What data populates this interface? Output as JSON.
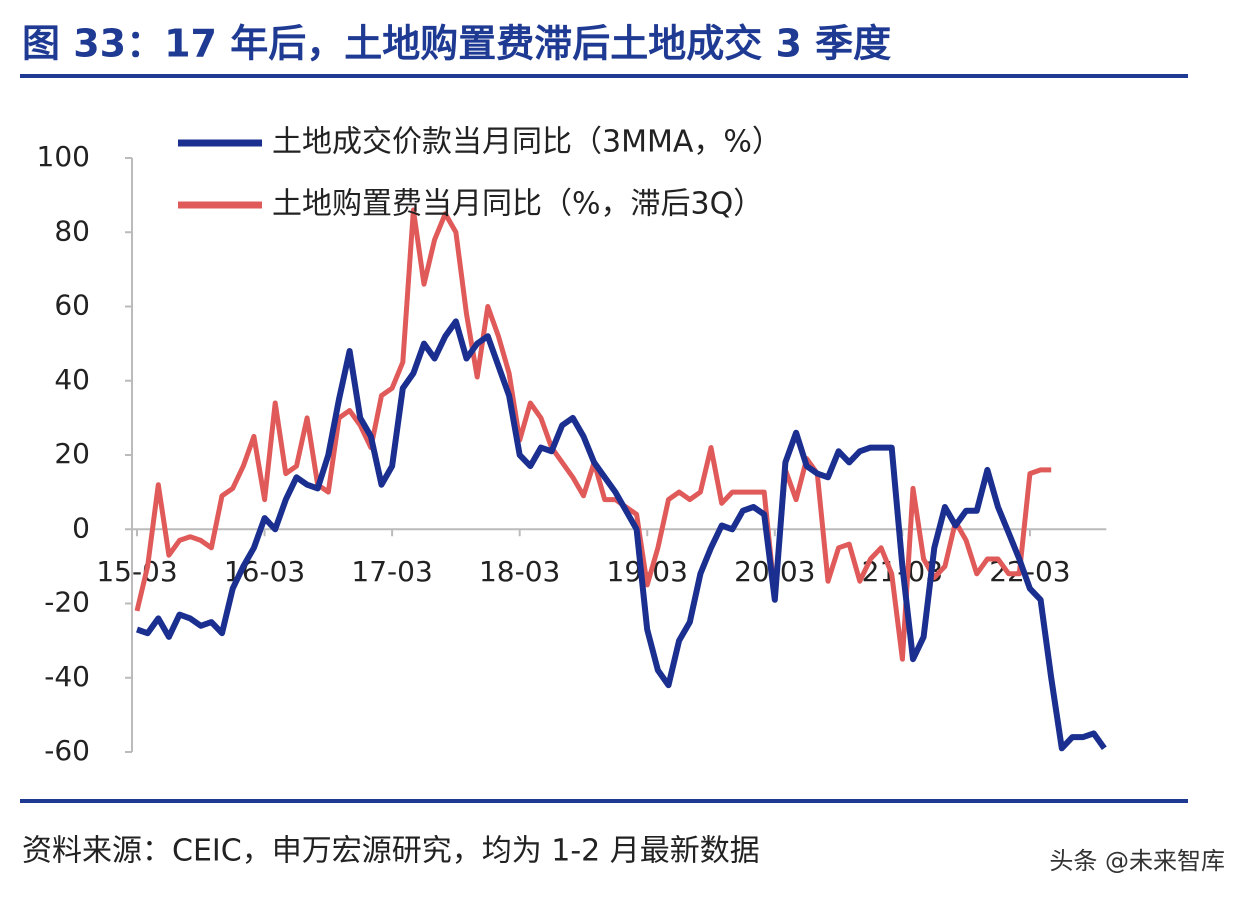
{
  "chart_data": {
    "type": "line",
    "title": "图 33：17 年后，土地购置费滞后土地成交 3 季度",
    "source": "资料来源：CEIC，申万宏源研究，均为 1-2 月最新数据",
    "watermark": "头条 @未来智库",
    "categories": [
      "15-03",
      null,
      null,
      null,
      null,
      null,
      null,
      null,
      null,
      null,
      null,
      null,
      "16-03",
      null,
      null,
      null,
      null,
      null,
      null,
      null,
      null,
      null,
      null,
      null,
      "17-03",
      null,
      null,
      null,
      null,
      null,
      null,
      null,
      null,
      null,
      null,
      null,
      "18-03",
      null,
      null,
      null,
      null,
      null,
      null,
      null,
      null,
      null,
      null,
      null,
      "19-03",
      null,
      null,
      null,
      null,
      null,
      null,
      null,
      null,
      null,
      null,
      null,
      "20-03",
      null,
      null,
      null,
      null,
      null,
      null,
      null,
      null,
      null,
      null,
      null,
      "21-03",
      null,
      null,
      null,
      null,
      null,
      null,
      null,
      null,
      null,
      null,
      null,
      "22-03",
      null,
      null,
      null,
      null,
      null,
      null,
      null
    ],
    "series": [
      {
        "name": "土地成交价款当月同比（3MMA，%）",
        "color": "#1a2f8f",
        "values": [
          -27,
          -28,
          -24,
          -29,
          -23,
          -24,
          -26,
          -25,
          -28,
          -16,
          -10,
          -5,
          3,
          0,
          8,
          14,
          12,
          11,
          20,
          35,
          48,
          30,
          25,
          12,
          17,
          38,
          42,
          50,
          46,
          52,
          56,
          46,
          50,
          52,
          44,
          36,
          20,
          17,
          22,
          21,
          28,
          30,
          25,
          18,
          14,
          10,
          5,
          0,
          -27,
          -38,
          -42,
          -30,
          -25,
          -12,
          -5,
          1,
          0,
          5,
          6,
          4,
          -19,
          18,
          26,
          17,
          15,
          14,
          21,
          18,
          21,
          22,
          22,
          22,
          -10,
          -35,
          -29,
          -5,
          6,
          1,
          5,
          5,
          16,
          6,
          -1,
          -8,
          -16,
          -19,
          -40,
          -59,
          -56,
          -56,
          -55,
          -59
        ]
      },
      {
        "name": "土地购置费当月同比（%，滞后3Q）",
        "color": "#e05a5a",
        "values": [
          -22,
          -10,
          12,
          -7,
          -3,
          -2,
          -3,
          -5,
          9,
          11,
          17,
          25,
          8,
          34,
          15,
          17,
          30,
          12,
          10,
          30,
          32,
          28,
          22,
          36,
          38,
          45,
          86,
          66,
          78,
          85,
          80,
          58,
          41,
          60,
          52,
          42,
          24,
          34,
          30,
          22,
          18,
          14,
          9,
          18,
          8,
          8,
          6,
          4,
          -15,
          -5,
          8,
          10,
          8,
          10,
          22,
          7,
          10,
          10,
          10,
          10,
          -18,
          16,
          8,
          19,
          15,
          -14,
          -5,
          -4,
          -14,
          -8,
          -5,
          -12,
          -35,
          11,
          -8,
          -13,
          -10,
          2,
          -3,
          -12,
          -8,
          -8,
          -12,
          -12,
          15,
          16,
          16,
          null,
          null,
          null,
          null,
          null
        ]
      }
    ],
    "ylim": [
      -60,
      100
    ],
    "yticks": [
      -60,
      -40,
      -20,
      0,
      20,
      40,
      60,
      80,
      100
    ],
    "legend": "top-left"
  }
}
